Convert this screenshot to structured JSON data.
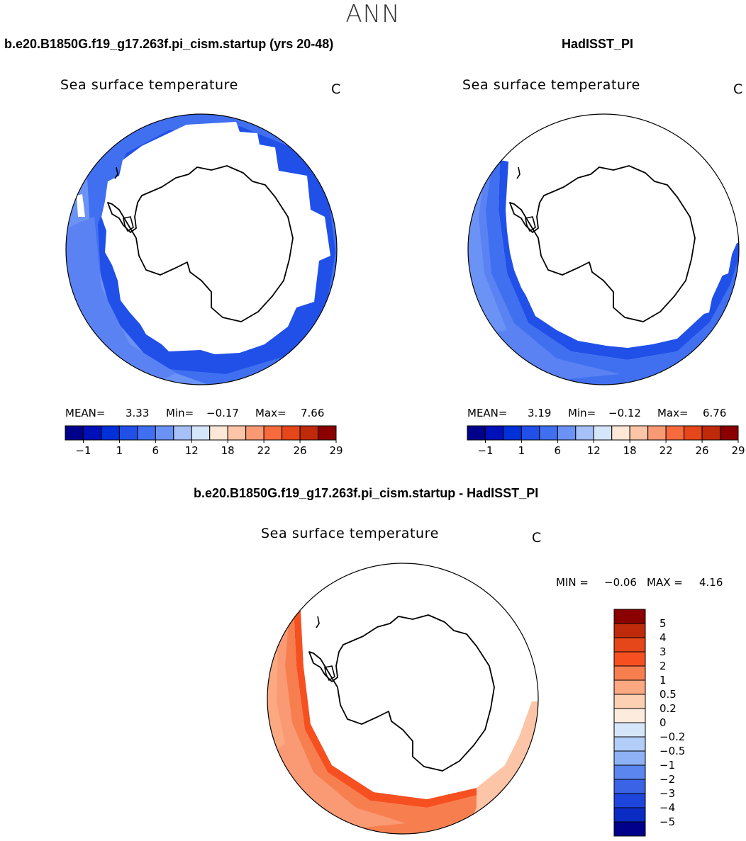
{
  "page": {
    "title": "ANN",
    "land_color": "#ffffff",
    "coast_color": "#000000"
  },
  "top_left": {
    "case_title": "b.e20.B1850G.f19_g17.263f.pi_cism.startup (yrs 20-48)",
    "variable": "Sea surface temperature",
    "units": "C",
    "stats": {
      "mean_label": "MEAN=",
      "mean": "3.33",
      "min_label": "Min=",
      "min": "−0.17",
      "max_label": "Max=",
      "max": "7.66"
    }
  },
  "top_right": {
    "case_title": "HadISST_PI",
    "variable": "Sea surface temperature",
    "units": "C",
    "stats": {
      "mean_label": "MEAN=",
      "mean": "3.19",
      "min_label": "Min=",
      "min": "−0.12",
      "max_label": "Max=",
      "max": "6.76"
    }
  },
  "bottom": {
    "case_title": "b.e20.B1850G.f19_g17.263f.pi_cism.startup - HadISST_PI",
    "variable": "Sea surface temperature",
    "units": "C",
    "stats": {
      "min_label": "MIN =",
      "min": "−0.06",
      "max_label": "MAX =",
      "max": "4.16"
    }
  },
  "sst_colorbar": {
    "colors": [
      "#00008b",
      "#0010b8",
      "#0030d8",
      "#2050e8",
      "#4070f0",
      "#6b92f5",
      "#a6c0f8",
      "#d6e6fa",
      "#fde7d6",
      "#fcc5a8",
      "#f99a74",
      "#f66a3e",
      "#e5461a",
      "#bf2a0b",
      "#8b0000"
    ],
    "ticks": [
      "−1",
      "1",
      "6",
      "12",
      "18",
      "22",
      "26",
      "29"
    ]
  },
  "diff_colorbar": {
    "colors": [
      "#8b0000",
      "#bf2a0b",
      "#e5461a",
      "#f65020",
      "#f77f4f",
      "#fca982",
      "#fdd0b4",
      "#fdebdd",
      "#d6e6fa",
      "#b2cdf8",
      "#8eb2f5",
      "#5b85ef",
      "#3a63e6",
      "#1d45dc",
      "#0a2bc4",
      "#00008b"
    ],
    "labels": [
      "5",
      "4",
      "3",
      "2",
      "1",
      "0.5",
      "0.2",
      "0",
      "−0.2",
      "−0.5",
      "−1",
      "−2",
      "−3",
      "−4",
      "−5"
    ]
  },
  "legend_colors": {
    "model_ocean_light": "#6b92f5",
    "model_ocean_mid": "#4070f0",
    "model_ocean_dark": "#2050e8",
    "diff_light": "#fca982",
    "diff_mid": "#f77f4f",
    "diff_dark": "#f65020"
  }
}
